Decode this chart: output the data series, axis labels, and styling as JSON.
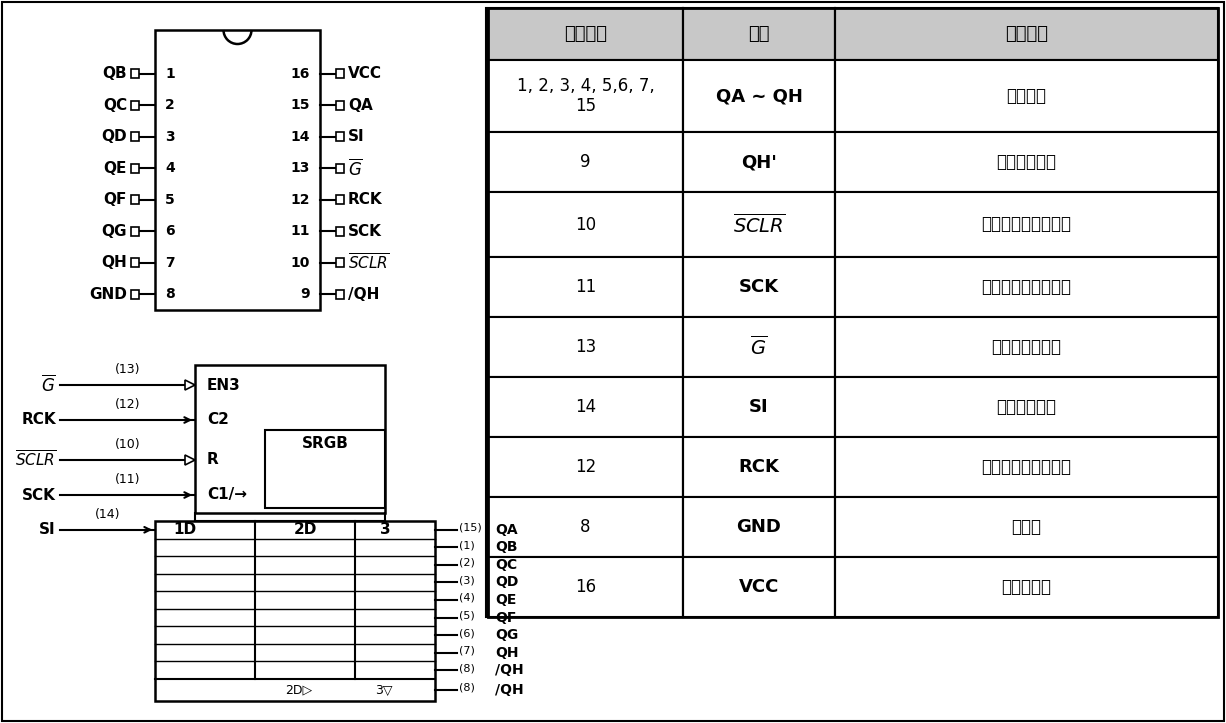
{
  "bg_color": "#ffffff",
  "line_color": "#000000",
  "text_color": "#000000",
  "table_header_bg": "#c8c8c8",
  "table_headers": [
    "管脚序号",
    "符号",
    "功能描述"
  ],
  "table_rows": [
    [
      "1, 2, 3, 4, 5,6, 7,\n15",
      "QA ~ QH",
      "数据输出"
    ],
    [
      "9",
      "QH'",
      "串行数据输出"
    ],
    [
      "10",
      "SCLR_bar",
      "移位寄存器清零输入"
    ],
    [
      "11",
      "SCK",
      "移位寄存器时钟输入"
    ],
    [
      "13",
      "G_bar",
      "输出使能控制端"
    ],
    [
      "14",
      "SI",
      "串行数据输入"
    ],
    [
      "12",
      "RCK",
      "存储寄存器时钟输入"
    ],
    [
      "8",
      "GND",
      "接地端"
    ],
    [
      "16",
      "VCC",
      "正电源输入"
    ]
  ],
  "left_pins": [
    "QB",
    "QC",
    "QD",
    "QE",
    "QF",
    "QG",
    "QH",
    "GND"
  ],
  "left_nums": [
    "1",
    "2",
    "3",
    "4",
    "5",
    "6",
    "7",
    "8"
  ],
  "right_pins": [
    "VCC",
    "QA",
    "SI",
    "G_bar",
    "RCK",
    "SCK",
    "SCLR_bar",
    "/QH"
  ],
  "right_nums": [
    "16",
    "15",
    "14",
    "13",
    "12",
    "11",
    "10",
    "9"
  ]
}
